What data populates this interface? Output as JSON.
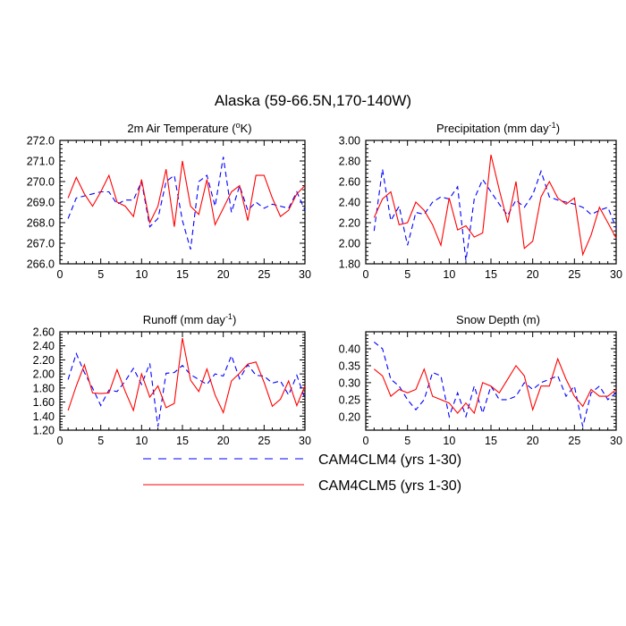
{
  "title": "Alaska (59-66.5N,170-140W)",
  "legend": [
    {
      "label": "CAM4CLM4 (yrs 1-30)",
      "color": "#0000ff",
      "dash": "dashed"
    },
    {
      "label": "CAM4CLM5 (yrs 1-30)",
      "color": "#ff0000",
      "dash": "solid"
    }
  ],
  "chart_data": [
    {
      "type": "line",
      "title_text": "2m Air Temperature (",
      "title_sup": "o",
      "title_tail": "K)",
      "x": [
        1,
        2,
        3,
        4,
        5,
        6,
        7,
        8,
        9,
        10,
        11,
        12,
        13,
        14,
        15,
        16,
        17,
        18,
        19,
        20,
        21,
        22,
        23,
        24,
        25,
        26,
        27,
        28,
        29,
        30
      ],
      "xlim": [
        0,
        30
      ],
      "xticks": [
        "0",
        "5",
        "10",
        "15",
        "20",
        "25",
        "30"
      ],
      "xtick_values": [
        0,
        5,
        10,
        15,
        20,
        25,
        30
      ],
      "ylim": [
        266.0,
        272.0
      ],
      "yticks": [
        "266.0",
        "267.0",
        "268.0",
        "269.0",
        "270.0",
        "271.0",
        "272.0"
      ],
      "ytick_values": [
        266,
        267,
        268,
        269,
        270,
        271,
        272
      ],
      "series": [
        {
          "name": "CAM4CLM4 (yrs 1-30)",
          "values": [
            268.2,
            269.2,
            269.3,
            269.4,
            269.5,
            269.5,
            268.9,
            269.1,
            269.1,
            270.0,
            267.8,
            268.2,
            270.0,
            270.3,
            268.1,
            266.7,
            270.0,
            270.3,
            268.8,
            271.2,
            268.5,
            269.8,
            268.6,
            269.0,
            268.7,
            268.9,
            268.8,
            268.7,
            269.5,
            268.6
          ]
        },
        {
          "name": "CAM4CLM5 (yrs 1-30)",
          "values": [
            269.2,
            270.2,
            269.4,
            268.8,
            269.5,
            270.3,
            269.0,
            268.8,
            268.3,
            270.1,
            268.0,
            268.8,
            270.6,
            267.8,
            271.0,
            268.8,
            268.4,
            270.1,
            267.9,
            268.7,
            269.5,
            269.8,
            268.1,
            270.3,
            270.3,
            269.2,
            268.3,
            268.6,
            269.4,
            269.8
          ]
        }
      ]
    },
    {
      "type": "line",
      "title_text": "Precipitation (mm day",
      "title_sup": "-1",
      "title_tail": ")",
      "x": [
        1,
        2,
        3,
        4,
        5,
        6,
        7,
        8,
        9,
        10,
        11,
        12,
        13,
        14,
        15,
        16,
        17,
        18,
        19,
        20,
        21,
        22,
        23,
        24,
        25,
        26,
        27,
        28,
        29,
        30
      ],
      "xlim": [
        0,
        30
      ],
      "xticks": [
        "0",
        "5",
        "10",
        "15",
        "20",
        "25",
        "30"
      ],
      "xtick_values": [
        0,
        5,
        10,
        15,
        20,
        25,
        30
      ],
      "ylim": [
        1.8,
        3.0
      ],
      "yticks": [
        "1.80",
        "2.00",
        "2.20",
        "2.40",
        "2.60",
        "2.80",
        "3.00"
      ],
      "ytick_values": [
        1.8,
        2.0,
        2.2,
        2.4,
        2.6,
        2.8,
        3.0
      ],
      "series": [
        {
          "name": "CAM4CLM4 (yrs 1-30)",
          "values": [
            2.12,
            2.72,
            2.22,
            2.36,
            1.98,
            2.3,
            2.28,
            2.4,
            2.45,
            2.43,
            2.55,
            1.83,
            2.43,
            2.62,
            2.5,
            2.38,
            2.27,
            2.42,
            2.35,
            2.47,
            2.7,
            2.45,
            2.42,
            2.4,
            2.38,
            2.35,
            2.28,
            2.32,
            2.35,
            2.15
          ]
        },
        {
          "name": "CAM4CLM5 (yrs 1-30)",
          "values": [
            2.25,
            2.43,
            2.5,
            2.18,
            2.2,
            2.4,
            2.32,
            2.18,
            1.98,
            2.44,
            2.13,
            2.17,
            2.06,
            2.1,
            2.86,
            2.52,
            2.2,
            2.6,
            1.95,
            2.02,
            2.45,
            2.6,
            2.44,
            2.38,
            2.44,
            1.89,
            2.08,
            2.35,
            2.2,
            2.05
          ]
        }
      ]
    },
    {
      "type": "line",
      "title_text": "Runoff (mm day",
      "title_sup": "-1",
      "title_tail": ")",
      "x": [
        1,
        2,
        3,
        4,
        5,
        6,
        7,
        8,
        9,
        10,
        11,
        12,
        13,
        14,
        15,
        16,
        17,
        18,
        19,
        20,
        21,
        22,
        23,
        24,
        25,
        26,
        27,
        28,
        29,
        30
      ],
      "xlim": [
        0,
        30
      ],
      "xticks": [
        "0",
        "5",
        "10",
        "15",
        "20",
        "25",
        "30"
      ],
      "xtick_values": [
        0,
        5,
        10,
        15,
        20,
        25,
        30
      ],
      "ylim": [
        1.2,
        2.6
      ],
      "yticks": [
        "1.20",
        "1.40",
        "1.60",
        "1.80",
        "2.00",
        "2.20",
        "2.40",
        "2.60"
      ],
      "ytick_values": [
        1.2,
        1.4,
        1.6,
        1.8,
        2.0,
        2.2,
        2.4,
        2.6
      ],
      "series": [
        {
          "name": "CAM4CLM4 (yrs 1-30)",
          "values": [
            1.92,
            2.29,
            2.02,
            1.8,
            1.55,
            1.77,
            1.75,
            1.9,
            2.08,
            1.85,
            2.15,
            1.25,
            2.01,
            2.02,
            2.12,
            1.99,
            1.92,
            1.85,
            2.0,
            1.97,
            2.26,
            1.93,
            2.13,
            1.98,
            1.97,
            1.87,
            1.9,
            1.7,
            1.98,
            1.65
          ]
        },
        {
          "name": "CAM4CLM5 (yrs 1-30)",
          "values": [
            1.48,
            1.83,
            2.13,
            1.73,
            1.72,
            1.73,
            2.06,
            1.75,
            1.48,
            2.0,
            1.67,
            1.83,
            1.52,
            1.58,
            2.51,
            1.91,
            1.75,
            2.07,
            1.7,
            1.45,
            1.9,
            2.01,
            2.14,
            2.17,
            1.88,
            1.54,
            1.64,
            1.9,
            1.55,
            1.83
          ]
        }
      ]
    },
    {
      "type": "line",
      "title_text": "Snow Depth (m)",
      "title_sup": "",
      "title_tail": "",
      "x": [
        1,
        2,
        3,
        4,
        5,
        6,
        7,
        8,
        9,
        10,
        11,
        12,
        13,
        14,
        15,
        16,
        17,
        18,
        19,
        20,
        21,
        22,
        23,
        24,
        25,
        26,
        27,
        28,
        29,
        30
      ],
      "xlim": [
        0,
        30
      ],
      "xticks": [
        "0",
        "5",
        "10",
        "15",
        "20",
        "25",
        "30"
      ],
      "xtick_values": [
        0,
        5,
        10,
        15,
        20,
        25,
        30
      ],
      "ylim": [
        0.16,
        0.45
      ],
      "yticks": [
        "0.20",
        "0.25",
        "0.30",
        "0.35",
        "0.40"
      ],
      "ytick_values": [
        0.2,
        0.25,
        0.3,
        0.35,
        0.4
      ],
      "series": [
        {
          "name": "CAM4CLM4 (yrs 1-30)",
          "values": [
            0.42,
            0.4,
            0.31,
            0.29,
            0.25,
            0.22,
            0.25,
            0.33,
            0.32,
            0.2,
            0.27,
            0.2,
            0.29,
            0.21,
            0.29,
            0.25,
            0.25,
            0.26,
            0.3,
            0.28,
            0.3,
            0.31,
            0.32,
            0.26,
            0.29,
            0.17,
            0.27,
            0.29,
            0.25,
            0.27
          ]
        },
        {
          "name": "CAM4CLM5 (yrs 1-30)",
          "values": [
            0.34,
            0.32,
            0.26,
            0.28,
            0.27,
            0.28,
            0.34,
            0.26,
            0.25,
            0.24,
            0.21,
            0.24,
            0.21,
            0.3,
            0.29,
            0.27,
            0.31,
            0.35,
            0.32,
            0.22,
            0.29,
            0.29,
            0.37,
            0.31,
            0.26,
            0.23,
            0.28,
            0.26,
            0.26,
            0.28
          ]
        }
      ]
    }
  ]
}
